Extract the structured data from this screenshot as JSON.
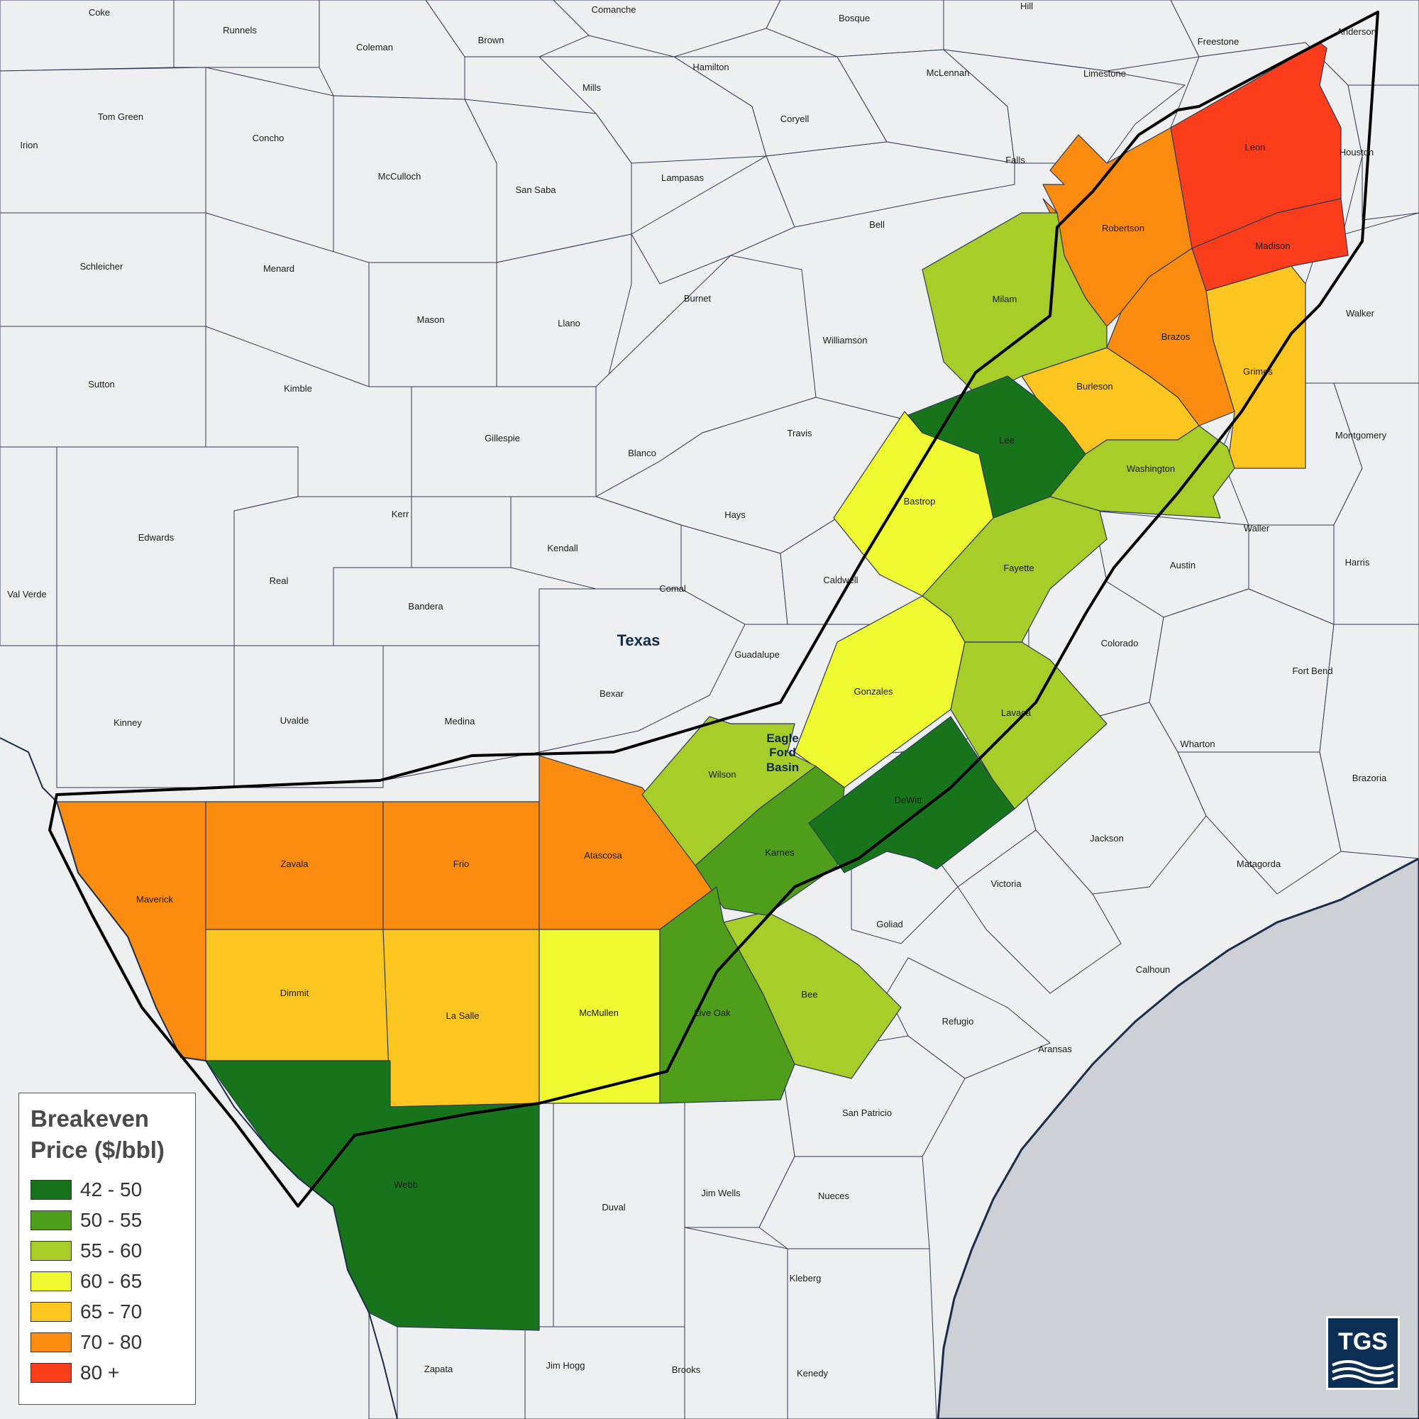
{
  "map": {
    "state_label": "Texas",
    "basin_label": [
      "Eagle",
      "Ford",
      "Basin"
    ]
  },
  "legend": {
    "title": [
      "Breakeven",
      "Price ($/bbl)"
    ],
    "bins": [
      {
        "label": "42 - 50",
        "color": "#17741b"
      },
      {
        "label": "50 - 55",
        "color": "#4e9d1b"
      },
      {
        "label": "55 - 60",
        "color": "#a6cd28"
      },
      {
        "label": "60 - 65",
        "color": "#eff92f"
      },
      {
        "label": "65 - 70",
        "color": "#fdc520"
      },
      {
        "label": "70 - 80",
        "color": "#fb8c10"
      },
      {
        "label": "80 +",
        "color": "#fc3d1b"
      }
    ]
  },
  "basin_counties": [
    {
      "name": "Leon",
      "bin": 6
    },
    {
      "name": "Madison",
      "bin": 6
    },
    {
      "name": "Robertson",
      "bin": 5
    },
    {
      "name": "Brazos",
      "bin": 5
    },
    {
      "name": "Maverick",
      "bin": 5
    },
    {
      "name": "Zavala",
      "bin": 5
    },
    {
      "name": "Frio",
      "bin": 5
    },
    {
      "name": "Atascosa",
      "bin": 5
    },
    {
      "name": "Burleson",
      "bin": 4
    },
    {
      "name": "Grimes",
      "bin": 4
    },
    {
      "name": "Dimmit",
      "bin": 4
    },
    {
      "name": "La Salle",
      "bin": 4
    },
    {
      "name": "Bastrop",
      "bin": 3
    },
    {
      "name": "Gonzales",
      "bin": 3
    },
    {
      "name": "McMullen",
      "bin": 3
    },
    {
      "name": "Milam",
      "bin": 2
    },
    {
      "name": "Washington",
      "bin": 2
    },
    {
      "name": "Fayette",
      "bin": 2
    },
    {
      "name": "Lavaca",
      "bin": 2
    },
    {
      "name": "Wilson",
      "bin": 2
    },
    {
      "name": "Bee",
      "bin": 2
    },
    {
      "name": "Karnes",
      "bin": 1
    },
    {
      "name": "Live Oak",
      "bin": 1
    },
    {
      "name": "Lee",
      "bin": 0
    },
    {
      "name": "DeWitt",
      "bin": 0
    },
    {
      "name": "Webb",
      "bin": 0
    }
  ],
  "other_counties": [
    "Coke",
    "Runnels",
    "Coleman",
    "Brown",
    "Comanche",
    "Hamilton",
    "Bosque",
    "Hill",
    "Freestone",
    "Anderson",
    "Mills",
    "McLennan",
    "Limestone",
    "Tom Green",
    "Concho",
    "Coryell",
    "Irion",
    "McCulloch",
    "San Saba",
    "Lampasas",
    "Falls",
    "Houston",
    "Schleicher",
    "Menard",
    "Bell",
    "Burnet",
    "Walker",
    "Mason",
    "Llano",
    "Williamson",
    "Sutton",
    "Kimble",
    "Travis",
    "Montgomery",
    "Gillespie",
    "Blanco",
    "Edwards",
    "Kerr",
    "Hays",
    "Waller",
    "Kendall",
    "Caldwell",
    "Austin",
    "Harris",
    "Real",
    "Comal",
    "Val Verde",
    "Bandera",
    "Colorado",
    "Guadalupe",
    "Fort Bend",
    "Bexar",
    "Kinney",
    "Uvalde",
    "Medina",
    "Wharton",
    "Brazoria",
    "Jackson",
    "Matagorda",
    "Victoria",
    "Goliad",
    "Calhoun",
    "Refugio",
    "Aransas",
    "San Patricio",
    "Duval",
    "Jim Wells",
    "Nueces",
    "Kleberg",
    "Zapata",
    "Jim Hogg",
    "Brooks",
    "Kenedy"
  ],
  "logo": {
    "text": "TGS"
  }
}
